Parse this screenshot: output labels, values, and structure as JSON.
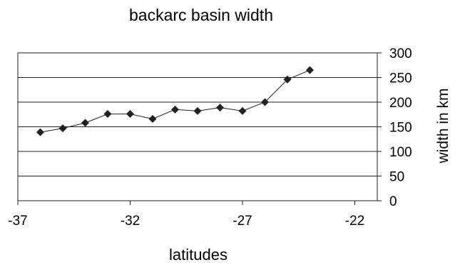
{
  "chart_data": {
    "type": "line",
    "title": "backarc basin width",
    "xlabel": "latitudes",
    "ylabel": "width in km",
    "x_ticks": [
      -37,
      -32,
      -27,
      -22
    ],
    "y_ticks": [
      0,
      50,
      100,
      150,
      200,
      250,
      300
    ],
    "xlim": [
      -37,
      -21
    ],
    "ylim": [
      0,
      300
    ],
    "y_axis_side": "right",
    "grid": "horizontal",
    "legend": "none",
    "series": [
      {
        "marker": "diamond",
        "color": "#222222",
        "x": [
          -36,
          -35,
          -34,
          -33,
          -32,
          -31,
          -30,
          -29,
          -28,
          -27,
          -26,
          -25,
          -24
        ],
        "y": [
          139,
          147,
          158,
          176,
          176,
          166,
          185,
          182,
          189,
          182,
          200,
          246,
          265
        ]
      }
    ]
  }
}
